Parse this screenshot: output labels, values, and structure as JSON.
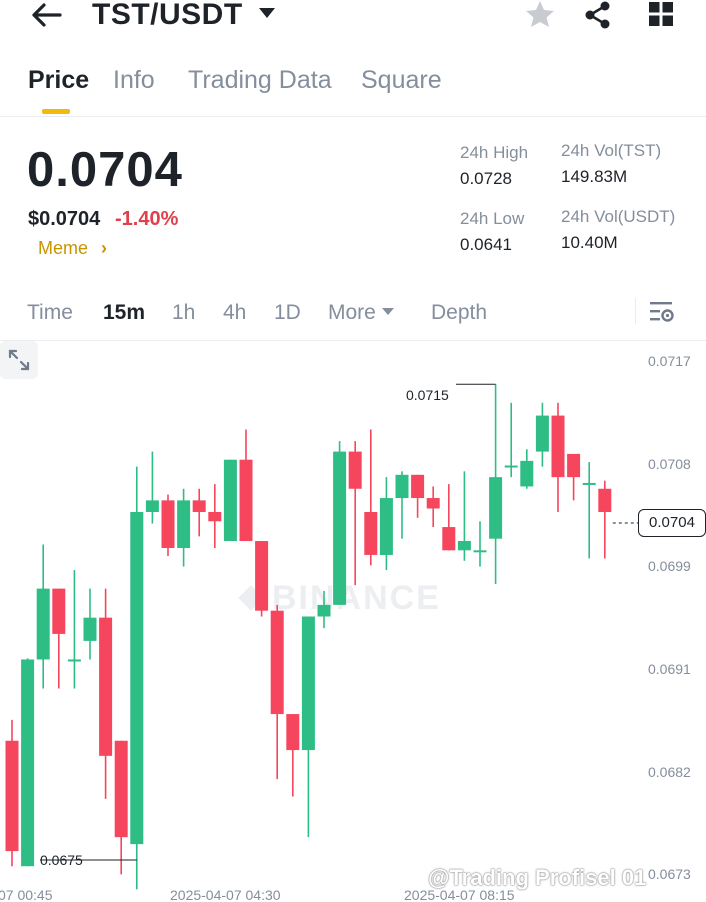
{
  "header": {
    "pair": "TST/USDT",
    "icons": [
      "back-arrow-icon",
      "caret-down-icon",
      "star-icon",
      "share-icon",
      "grid-icon"
    ]
  },
  "tabs": [
    {
      "label": "Price",
      "active": true
    },
    {
      "label": "Info",
      "active": false
    },
    {
      "label": "Trading Data",
      "active": false
    },
    {
      "label": "Square",
      "active": false
    }
  ],
  "price": {
    "last": "0.0704",
    "usd": "$0.0704",
    "change": "-1.40%",
    "tag": "Meme",
    "tag_arrow": "›"
  },
  "stats": {
    "high_label": "24h High",
    "high_value": "0.0728",
    "low_label": "24h Low",
    "low_value": "0.0641",
    "vol_base_label": "24h Vol(TST)",
    "vol_base_value": "149.83M",
    "vol_quote_label": "24h Vol(USDT)",
    "vol_quote_value": "10.40M"
  },
  "intervals": [
    {
      "label": "Time",
      "active": false
    },
    {
      "label": "15m",
      "active": true
    },
    {
      "label": "1h",
      "active": false
    },
    {
      "label": "4h",
      "active": false
    },
    {
      "label": "1D",
      "active": false
    },
    {
      "label": "More",
      "active": false
    },
    {
      "label": "Depth",
      "active": false
    }
  ],
  "chart": {
    "watermark": "BINANCE",
    "current_price_label": "0.0704",
    "high_annotation": "0.0715",
    "low_annotation": "0.0675",
    "credit": "@Trading Profisel 01"
  },
  "colors": {
    "up": "#2ebd85",
    "down": "#f6465d",
    "accent": "#f0b90b",
    "negative_text": "#e0404b"
  },
  "chart_data": {
    "type": "candlestick",
    "interval": "15m",
    "y_ticks": [
      "0.0717",
      "0.0708",
      "0.0699",
      "0.0691",
      "0.0682",
      "0.0673"
    ],
    "x_ticks": [
      "07 00:45",
      "2025-04-07 04:30",
      "2025-04-07 08:15"
    ],
    "ylim": [
      0.067,
      0.0722
    ],
    "candles": [
      {
        "o": 0.06843,
        "h": 0.06861,
        "l": 0.06735,
        "c": 0.06748
      },
      {
        "o": 0.06735,
        "h": 0.06914,
        "l": 0.06735,
        "c": 0.06913
      },
      {
        "o": 0.06913,
        "h": 0.07012,
        "l": 0.06888,
        "c": 0.06974
      },
      {
        "o": 0.06974,
        "h": 0.06974,
        "l": 0.06888,
        "c": 0.06935
      },
      {
        "o": 0.06913,
        "h": 0.0699,
        "l": 0.06888,
        "c": 0.06913
      },
      {
        "o": 0.06929,
        "h": 0.06974,
        "l": 0.06913,
        "c": 0.06949
      },
      {
        "o": 0.06949,
        "h": 0.06974,
        "l": 0.06793,
        "c": 0.0683
      },
      {
        "o": 0.06843,
        "h": 0.06843,
        "l": 0.06728,
        "c": 0.0676
      },
      {
        "o": 0.06754,
        "h": 0.07079,
        "l": 0.06715,
        "c": 0.0704
      },
      {
        "o": 0.0704,
        "h": 0.07092,
        "l": 0.0703,
        "c": 0.0705
      },
      {
        "o": 0.0705,
        "h": 0.07055,
        "l": 0.07002,
        "c": 0.07009
      },
      {
        "o": 0.07009,
        "h": 0.0706,
        "l": 0.06993,
        "c": 0.0705
      },
      {
        "o": 0.0705,
        "h": 0.0706,
        "l": 0.07019,
        "c": 0.0704
      },
      {
        "o": 0.0704,
        "h": 0.07064,
        "l": 0.07009,
        "c": 0.07032
      },
      {
        "o": 0.07015,
        "h": 0.07085,
        "l": 0.07015,
        "c": 0.07085
      },
      {
        "o": 0.07085,
        "h": 0.07111,
        "l": 0.07015,
        "c": 0.07015
      },
      {
        "o": 0.07015,
        "h": 0.07015,
        "l": 0.0695,
        "c": 0.06955
      },
      {
        "o": 0.06955,
        "h": 0.0696,
        "l": 0.0681,
        "c": 0.06866
      },
      {
        "o": 0.06866,
        "h": 0.06866,
        "l": 0.06795,
        "c": 0.06835
      },
      {
        "o": 0.06835,
        "h": 0.0695,
        "l": 0.0676,
        "c": 0.0695
      },
      {
        "o": 0.0695,
        "h": 0.06972,
        "l": 0.0694,
        "c": 0.0696
      },
      {
        "o": 0.0696,
        "h": 0.07101,
        "l": 0.0696,
        "c": 0.07092
      },
      {
        "o": 0.07092,
        "h": 0.07101,
        "l": 0.06977,
        "c": 0.0706
      },
      {
        "o": 0.0704,
        "h": 0.07111,
        "l": 0.06994,
        "c": 0.07003
      },
      {
        "o": 0.07003,
        "h": 0.0707,
        "l": 0.0699,
        "c": 0.07052
      },
      {
        "o": 0.07052,
        "h": 0.07075,
        "l": 0.07017,
        "c": 0.07072
      },
      {
        "o": 0.07072,
        "h": 0.07072,
        "l": 0.07035,
        "c": 0.07052
      },
      {
        "o": 0.07052,
        "h": 0.07062,
        "l": 0.07027,
        "c": 0.07043
      },
      {
        "o": 0.07027,
        "h": 0.07064,
        "l": 0.07007,
        "c": 0.07007
      },
      {
        "o": 0.07007,
        "h": 0.07075,
        "l": 0.06998,
        "c": 0.07015
      },
      {
        "o": 0.07007,
        "h": 0.07032,
        "l": 0.06993,
        "c": 0.07007
      },
      {
        "o": 0.07017,
        "h": 0.0715,
        "l": 0.06978,
        "c": 0.0707
      },
      {
        "o": 0.0708,
        "h": 0.07134,
        "l": 0.0707,
        "c": 0.0708
      },
      {
        "o": 0.07062,
        "h": 0.07094,
        "l": 0.0706,
        "c": 0.07084
      },
      {
        "o": 0.07092,
        "h": 0.07134,
        "l": 0.07079,
        "c": 0.07123
      },
      {
        "o": 0.07123,
        "h": 0.07134,
        "l": 0.0704,
        "c": 0.0707
      },
      {
        "o": 0.0709,
        "h": 0.0709,
        "l": 0.0705,
        "c": 0.0707
      },
      {
        "o": 0.07065,
        "h": 0.07083,
        "l": 0.07,
        "c": 0.07065
      },
      {
        "o": 0.0706,
        "h": 0.07067,
        "l": 0.07,
        "c": 0.0704
      }
    ]
  }
}
